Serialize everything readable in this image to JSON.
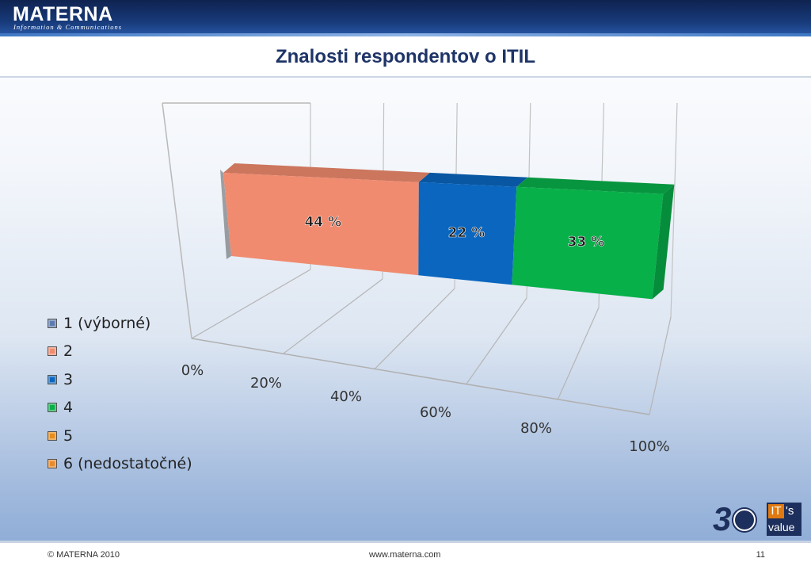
{
  "header": {
    "logo": "MATERNA",
    "logo_tagline": "Information & Communications"
  },
  "slide": {
    "title": "Znalosti respondentov o ITIL"
  },
  "chart_data": {
    "type": "bar",
    "orientation": "horizontal",
    "stacked": true,
    "percent": true,
    "three_d": true,
    "categories": [
      ""
    ],
    "series": [
      {
        "name": "1 (výborné)",
        "values": [
          0
        ],
        "color": "#5b7bb0"
      },
      {
        "name": "2",
        "values": [
          44
        ],
        "color": "#f08b6f",
        "label": "44 %"
      },
      {
        "name": "3",
        "values": [
          22
        ],
        "color": "#0a66bf",
        "label": "22 %"
      },
      {
        "name": "4",
        "values": [
          33
        ],
        "color": "#08b04a",
        "label": "33 %"
      },
      {
        "name": "5",
        "values": [
          0
        ],
        "color": "#e88c1a"
      },
      {
        "name": "6 (nedostatočné)",
        "values": [
          0
        ],
        "color": "#e98a2a"
      }
    ],
    "xlim": [
      0,
      100
    ],
    "x_ticks": [
      "0%",
      "20%",
      "40%",
      "60%",
      "80%",
      "100%"
    ],
    "grid": true,
    "legend_position": "left"
  },
  "footer": {
    "copyright": "© MATERNA 2010",
    "url": "www.materna.com",
    "page": "11"
  },
  "branding": {
    "anniversary": "3",
    "its_value_it": "IT",
    "its_value_s": "'s",
    "its_value_value": "value"
  }
}
